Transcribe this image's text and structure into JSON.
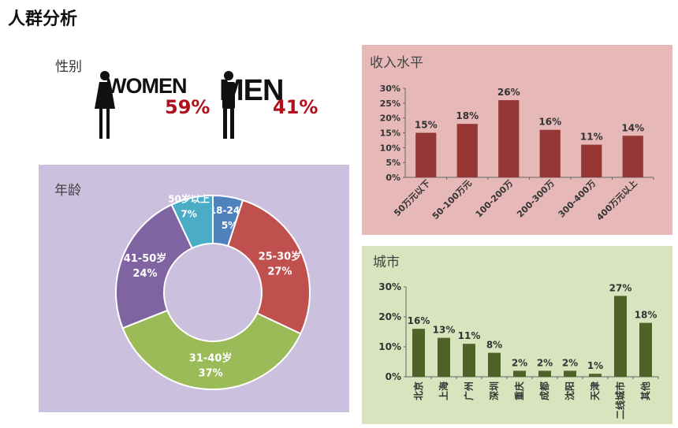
{
  "page_title": "人群分析",
  "gender": {
    "label": "性别",
    "women": {
      "word": "WOMEN",
      "pct": "59%",
      "value": 59
    },
    "men": {
      "word": "MEN",
      "pct": "41%",
      "value": 41
    }
  },
  "colors": {
    "age_bg": "#cbc0dd",
    "income_bg": "#e6b9b8",
    "city_bg": "#d7e4bd",
    "income_bar": "#953735",
    "city_bar": "#4f6228",
    "pct_red": "#b0101c"
  },
  "chart_data": [
    {
      "type": "pie",
      "variant": "donut",
      "title": "年龄",
      "categories": [
        "18-24岁",
        "25-30岁",
        "31-40岁",
        "41-50岁",
        "50岁以上"
      ],
      "values": [
        5,
        27,
        37,
        24,
        7
      ],
      "labels": [
        "5%",
        "27%",
        "37%",
        "24%",
        "7%"
      ],
      "colors": [
        "#4f81bd",
        "#c0504d",
        "#9bbb59",
        "#8064a2",
        "#4bacc6"
      ]
    },
    {
      "type": "bar",
      "title": "收入水平",
      "categories": [
        "50万元以下",
        "50-100万元",
        "100-200万",
        "200-300万",
        "300-400万",
        "400万元以上"
      ],
      "values": [
        15,
        18,
        26,
        16,
        11,
        14
      ],
      "labels": [
        "15%",
        "18%",
        "26%",
        "16%",
        "11%",
        "14%"
      ],
      "ylim": [
        0,
        30
      ],
      "yticks": [
        "0%",
        "5%",
        "10%",
        "15%",
        "20%",
        "25%",
        "30%"
      ],
      "color": "#953735"
    },
    {
      "type": "bar",
      "title": "城市",
      "categories": [
        "北京",
        "上海",
        "广州",
        "深圳",
        "重庆",
        "成都",
        "沈阳",
        "天津",
        "二线城市",
        "其他"
      ],
      "values": [
        16,
        13,
        11,
        8,
        2,
        2,
        2,
        1,
        27,
        18
      ],
      "labels": [
        "16%",
        "13%",
        "11%",
        "8%",
        "2%",
        "2%",
        "2%",
        "1%",
        "27%",
        "18%"
      ],
      "ylim": [
        0,
        30
      ],
      "yticks": [
        "0%",
        "10%",
        "20%",
        "30%"
      ],
      "color": "#4f6228"
    }
  ]
}
